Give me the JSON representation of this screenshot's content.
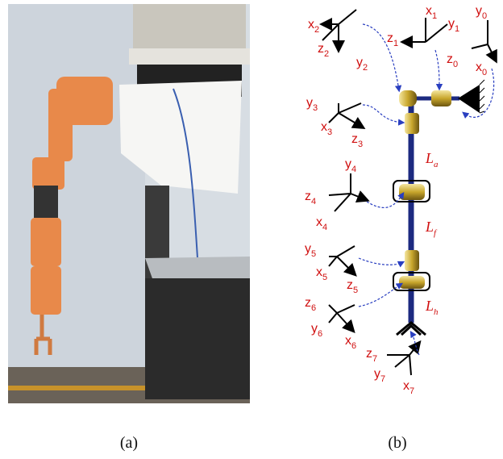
{
  "labels": [
    {
      "base": "x",
      "sub": "2"
    },
    {
      "base": "z",
      "sub": "2"
    },
    {
      "base": "y",
      "sub": "2"
    },
    {
      "base": "x",
      "sub": "1"
    },
    {
      "base": "y",
      "sub": "1"
    },
    {
      "base": "z",
      "sub": "1"
    },
    {
      "base": "y",
      "sub": "0"
    },
    {
      "base": "z",
      "sub": "0"
    },
    {
      "base": "x",
      "sub": "0"
    },
    {
      "base": "y",
      "sub": "3"
    },
    {
      "base": "x",
      "sub": "3"
    },
    {
      "base": "z",
      "sub": "3"
    },
    {
      "base": "y",
      "sub": "4"
    },
    {
      "base": "z",
      "sub": "4"
    },
    {
      "base": "x",
      "sub": "4"
    },
    {
      "base": "y",
      "sub": "5"
    },
    {
      "base": "x",
      "sub": "5"
    },
    {
      "base": "z",
      "sub": "5"
    },
    {
      "base": "z",
      "sub": "6"
    },
    {
      "base": "y",
      "sub": "6"
    },
    {
      "base": "x",
      "sub": "6"
    },
    {
      "base": "z",
      "sub": "7"
    },
    {
      "base": "y",
      "sub": "7"
    },
    {
      "base": "x",
      "sub": "7"
    }
  ],
  "links": [
    {
      "base": "L",
      "sub": "a"
    },
    {
      "base": "L",
      "sub": "f"
    },
    {
      "base": "L",
      "sub": "h"
    }
  ],
  "captions": [
    "(a)",
    "(b)"
  ]
}
